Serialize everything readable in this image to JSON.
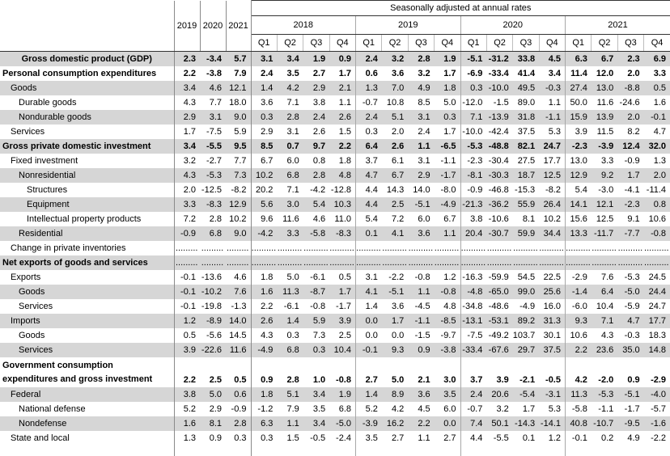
{
  "header": {
    "seasonal_label": "Seasonally adjusted at annual rates",
    "annual_years": [
      "2019",
      "2020",
      "2021"
    ],
    "quarter_years": [
      "2018",
      "2019",
      "2020",
      "2021"
    ],
    "quarter_labels": [
      "Q1",
      "Q2",
      "Q3",
      "Q4"
    ]
  },
  "colors": {
    "shaded_row": "#d6d6d6",
    "separator_strong": "#8a8a8a",
    "separator_group": "#a8a8a8",
    "separator_light": "#bdbdbd",
    "header_line": "#333333"
  },
  "rows": [
    {
      "label": "Gross domestic product (GDP)",
      "indent": 0,
      "bold": true,
      "align": "center",
      "values": [
        "2.3",
        "-3.4",
        "5.7",
        "3.1",
        "3.4",
        "1.9",
        "0.9",
        "2.4",
        "3.2",
        "2.8",
        "1.9",
        "-5.1",
        "-31.2",
        "33.8",
        "4.5",
        "6.3",
        "6.7",
        "2.3",
        "6.9"
      ]
    },
    {
      "label": "Personal consumption expenditures",
      "indent": 0,
      "bold": true,
      "values": [
        "2.2",
        "-3.8",
        "7.9",
        "2.4",
        "3.5",
        "2.7",
        "1.7",
        "0.6",
        "3.6",
        "3.2",
        "1.7",
        "-6.9",
        "-33.4",
        "41.4",
        "3.4",
        "11.4",
        "12.0",
        "2.0",
        "3.3"
      ]
    },
    {
      "label": "Goods",
      "indent": 1,
      "bold": false,
      "values": [
        "3.4",
        "4.6",
        "12.1",
        "1.4",
        "4.2",
        "2.9",
        "2.1",
        "1.3",
        "7.0",
        "4.9",
        "1.8",
        "0.3",
        "-10.0",
        "49.5",
        "-0.3",
        "27.4",
        "13.0",
        "-8.8",
        "0.5"
      ]
    },
    {
      "label": "Durable goods",
      "indent": 2,
      "bold": false,
      "values": [
        "4.3",
        "7.7",
        "18.0",
        "3.6",
        "7.1",
        "3.8",
        "1.1",
        "-0.7",
        "10.8",
        "8.5",
        "5.0",
        "-12.0",
        "-1.5",
        "89.0",
        "1.1",
        "50.0",
        "11.6",
        "-24.6",
        "1.6"
      ]
    },
    {
      "label": "Nondurable goods",
      "indent": 2,
      "bold": false,
      "values": [
        "2.9",
        "3.1",
        "9.0",
        "0.3",
        "2.8",
        "2.4",
        "2.6",
        "2.4",
        "5.1",
        "3.1",
        "0.3",
        "7.1",
        "-13.9",
        "31.8",
        "-1.1",
        "15.9",
        "13.9",
        "2.0",
        "-0.1"
      ]
    },
    {
      "label": "Services",
      "indent": 1,
      "bold": false,
      "values": [
        "1.7",
        "-7.5",
        "5.9",
        "2.9",
        "3.1",
        "2.6",
        "1.5",
        "0.3",
        "2.0",
        "2.4",
        "1.7",
        "-10.0",
        "-42.4",
        "37.5",
        "5.3",
        "3.9",
        "11.5",
        "8.2",
        "4.7"
      ]
    },
    {
      "label": "Gross private domestic investment",
      "indent": 0,
      "bold": true,
      "values": [
        "3.4",
        "-5.5",
        "9.5",
        "8.5",
        "0.7",
        "9.7",
        "2.2",
        "6.4",
        "2.6",
        "1.1",
        "-6.5",
        "-5.3",
        "-48.8",
        "82.1",
        "24.7",
        "-2.3",
        "-3.9",
        "12.4",
        "32.0"
      ]
    },
    {
      "label": "Fixed investment",
      "indent": 1,
      "bold": false,
      "values": [
        "3.2",
        "-2.7",
        "7.7",
        "6.7",
        "6.0",
        "0.8",
        "1.8",
        "3.7",
        "6.1",
        "3.1",
        "-1.1",
        "-2.3",
        "-30.4",
        "27.5",
        "17.7",
        "13.0",
        "3.3",
        "-0.9",
        "1.3"
      ]
    },
    {
      "label": "Nonresidential",
      "indent": 2,
      "bold": false,
      "values": [
        "4.3",
        "-5.3",
        "7.3",
        "10.2",
        "6.8",
        "2.8",
        "4.8",
        "4.7",
        "6.7",
        "2.9",
        "-1.7",
        "-8.1",
        "-30.3",
        "18.7",
        "12.5",
        "12.9",
        "9.2",
        "1.7",
        "2.0"
      ]
    },
    {
      "label": "Structures",
      "indent": 3,
      "bold": false,
      "values": [
        "2.0",
        "-12.5",
        "-8.2",
        "20.2",
        "7.1",
        "-4.2",
        "-12.8",
        "4.4",
        "14.3",
        "14.0",
        "-8.0",
        "-0.9",
        "-46.8",
        "-15.3",
        "-8.2",
        "5.4",
        "-3.0",
        "-4.1",
        "-11.4"
      ]
    },
    {
      "label": "Equipment",
      "indent": 3,
      "bold": false,
      "values": [
        "3.3",
        "-8.3",
        "12.9",
        "5.6",
        "3.0",
        "5.4",
        "10.3",
        "4.4",
        "2.5",
        "-5.1",
        "-4.9",
        "-21.3",
        "-36.2",
        "55.9",
        "26.4",
        "14.1",
        "12.1",
        "-2.3",
        "0.8"
      ]
    },
    {
      "label": "Intellectual property products",
      "indent": 3,
      "bold": false,
      "values": [
        "7.2",
        "2.8",
        "10.2",
        "9.6",
        "11.6",
        "4.6",
        "11.0",
        "5.4",
        "7.2",
        "6.0",
        "6.7",
        "3.8",
        "-10.6",
        "8.1",
        "10.2",
        "15.6",
        "12.5",
        "9.1",
        "10.6"
      ]
    },
    {
      "label": "Residential",
      "indent": 2,
      "bold": false,
      "values": [
        "-0.9",
        "6.8",
        "9.0",
        "-4.2",
        "3.3",
        "-5.8",
        "-8.3",
        "0.1",
        "4.1",
        "3.6",
        "1.1",
        "20.4",
        "-30.7",
        "59.9",
        "34.4",
        "13.3",
        "-11.7",
        "-7.7",
        "-0.8"
      ]
    },
    {
      "label": "Change in private inventories",
      "indent": 1,
      "bold": false,
      "dots": true,
      "values": [
        ".........",
        ".........",
        ".........",
        "..........",
        "..........",
        "..........",
        "..........",
        "..........",
        "..........",
        "..........",
        "..........",
        "..........",
        "..........",
        "..........",
        "..........",
        "..........",
        "..........",
        "..........",
        ".........."
      ]
    },
    {
      "label": "Net exports of goods and services",
      "indent": 0,
      "bold": true,
      "dots": true,
      "values": [
        ".........",
        ".........",
        ".........",
        "..........",
        "..........",
        "..........",
        "..........",
        "..........",
        "..........",
        "..........",
        "..........",
        "..........",
        "..........",
        "..........",
        "..........",
        "..........",
        "..........",
        "..........",
        ".........."
      ]
    },
    {
      "label": "Exports",
      "indent": 1,
      "bold": false,
      "values": [
        "-0.1",
        "-13.6",
        "4.6",
        "1.8",
        "5.0",
        "-6.1",
        "0.5",
        "3.1",
        "-2.2",
        "-0.8",
        "1.2",
        "-16.3",
        "-59.9",
        "54.5",
        "22.5",
        "-2.9",
        "7.6",
        "-5.3",
        "24.5"
      ]
    },
    {
      "label": "Goods",
      "indent": 2,
      "bold": false,
      "values": [
        "-0.1",
        "-10.2",
        "7.6",
        "1.6",
        "11.3",
        "-8.7",
        "1.7",
        "4.1",
        "-5.1",
        "1.1",
        "-0.8",
        "-4.8",
        "-65.0",
        "99.0",
        "25.6",
        "-1.4",
        "6.4",
        "-5.0",
        "24.4"
      ]
    },
    {
      "label": "Services",
      "indent": 2,
      "bold": false,
      "values": [
        "-0.1",
        "-19.8",
        "-1.3",
        "2.2",
        "-6.1",
        "-0.8",
        "-1.7",
        "1.4",
        "3.6",
        "-4.5",
        "4.8",
        "-34.8",
        "-48.6",
        "-4.9",
        "16.0",
        "-6.0",
        "10.4",
        "-5.9",
        "24.7"
      ]
    },
    {
      "label": "Imports",
      "indent": 1,
      "bold": false,
      "values": [
        "1.2",
        "-8.9",
        "14.0",
        "2.6",
        "1.4",
        "5.9",
        "3.9",
        "0.0",
        "1.7",
        "-1.1",
        "-8.5",
        "-13.1",
        "-53.1",
        "89.2",
        "31.3",
        "9.3",
        "7.1",
        "4.7",
        "17.7"
      ]
    },
    {
      "label": "Goods",
      "indent": 2,
      "bold": false,
      "values": [
        "0.5",
        "-5.6",
        "14.5",
        "4.3",
        "0.3",
        "7.3",
        "2.5",
        "0.0",
        "0.0",
        "-1.5",
        "-9.7",
        "-7.5",
        "-49.2",
        "103.7",
        "30.1",
        "10.6",
        "4.3",
        "-0.3",
        "18.3"
      ]
    },
    {
      "label": "Services",
      "indent": 2,
      "bold": false,
      "values": [
        "3.9",
        "-22.6",
        "11.6",
        "-4.9",
        "6.8",
        "0.3",
        "10.4",
        "-0.1",
        "9.3",
        "0.9",
        "-3.8",
        "-33.4",
        "-67.6",
        "29.7",
        "37.5",
        "2.2",
        "23.6",
        "35.0",
        "14.8"
      ]
    },
    {
      "label": "Government consumption\nexpenditures and gross investment",
      "indent": 0,
      "bold": true,
      "two_line": true,
      "values": [
        "2.2",
        "2.5",
        "0.5",
        "0.9",
        "2.8",
        "1.0",
        "-0.8",
        "2.7",
        "5.0",
        "2.1",
        "3.0",
        "3.7",
        "3.9",
        "-2.1",
        "-0.5",
        "4.2",
        "-2.0",
        "0.9",
        "-2.9"
      ]
    },
    {
      "label": "Federal",
      "indent": 1,
      "bold": false,
      "values": [
        "3.8",
        "5.0",
        "0.6",
        "1.8",
        "5.1",
        "3.4",
        "1.9",
        "1.4",
        "8.9",
        "3.6",
        "3.5",
        "2.4",
        "20.6",
        "-5.4",
        "-3.1",
        "11.3",
        "-5.3",
        "-5.1",
        "-4.0"
      ]
    },
    {
      "label": "National defense",
      "indent": 2,
      "bold": false,
      "values": [
        "5.2",
        "2.9",
        "-0.9",
        "-1.2",
        "7.9",
        "3.5",
        "6.8",
        "5.2",
        "4.2",
        "4.5",
        "6.0",
        "-0.7",
        "3.2",
        "1.7",
        "5.3",
        "-5.8",
        "-1.1",
        "-1.7",
        "-5.7"
      ]
    },
    {
      "label": "Nondefense",
      "indent": 2,
      "bold": false,
      "values": [
        "1.6",
        "8.1",
        "2.8",
        "6.3",
        "1.1",
        "3.4",
        "-5.0",
        "-3.9",
        "16.2",
        "2.2",
        "0.0",
        "7.4",
        "50.1",
        "-14.3",
        "-14.1",
        "40.8",
        "-10.7",
        "-9.5",
        "-1.6"
      ]
    },
    {
      "label": "State and local",
      "indent": 1,
      "bold": false,
      "values": [
        "1.3",
        "0.9",
        "0.3",
        "0.3",
        "1.5",
        "-0.5",
        "-2.4",
        "3.5",
        "2.7",
        "1.1",
        "2.7",
        "4.4",
        "-5.5",
        "0.1",
        "1.2",
        "-0.1",
        "0.2",
        "4.9",
        "-2.2"
      ]
    }
  ]
}
